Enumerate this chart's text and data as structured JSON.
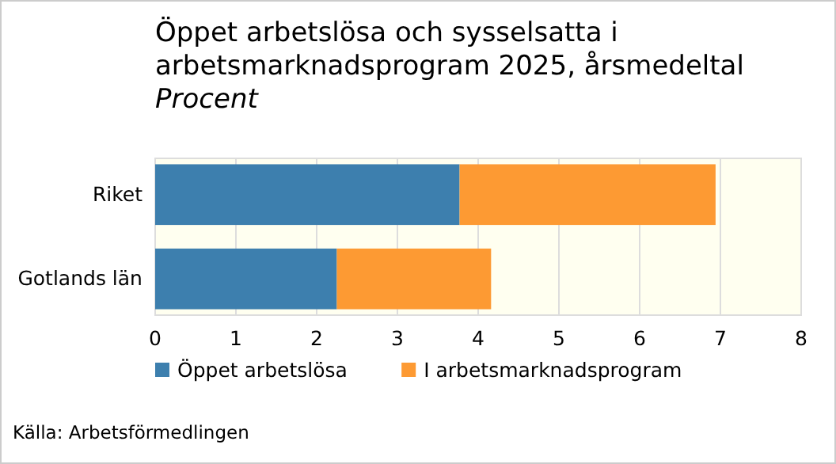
{
  "chart_data": {
    "type": "bar",
    "orientation": "horizontal",
    "stacked": true,
    "title": "Öppet arbetslösa och sysselsatta i arbetsmarknadsprogram 2025, årsmedeltal",
    "subtitle": "Procent",
    "categories": [
      "Riket",
      "Gotlands län"
    ],
    "series": [
      {
        "name": "Öppet arbetslösa",
        "color": "#3d7fae",
        "values": [
          3.77,
          2.25
        ]
      },
      {
        "name": "I arbetsmarknadsprogram",
        "color": "#fd9a33",
        "values": [
          3.17,
          1.91
        ]
      }
    ],
    "xlim": [
      0,
      8
    ],
    "xticks": [
      0,
      1,
      2,
      3,
      4,
      5,
      6,
      7,
      8
    ],
    "grid": "x",
    "legend": "bottom",
    "annotations": [
      "Källa: Arbetsförmedlingen"
    ]
  }
}
